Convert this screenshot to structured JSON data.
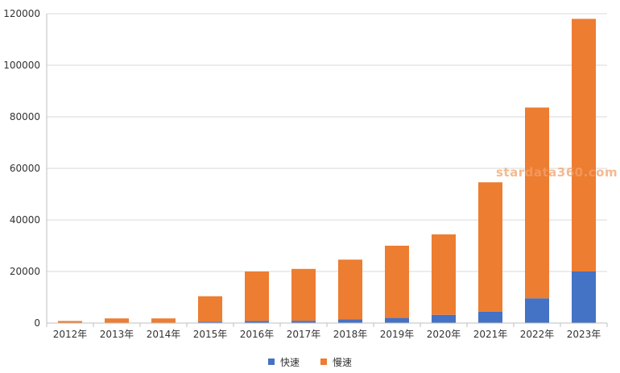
{
  "watermark": "stardata360.com",
  "colors": {
    "fast": "#4472c4",
    "slow": "#ed7d31",
    "watermark": "#f4a26a",
    "grid": "#d9d9d9",
    "axis": "#bfbfbf"
  },
  "chart_data": {
    "type": "bar",
    "stacked": true,
    "categories": [
      "2012年",
      "2013年",
      "2014年",
      "2015年",
      "2016年",
      "2017年",
      "2018年",
      "2019年",
      "2020年",
      "2021年",
      "2022年",
      "2023年"
    ],
    "series": [
      {
        "name": "快速",
        "color": "#4472c4",
        "values": [
          100,
          100,
          100,
          500,
          800,
          900,
          1500,
          2000,
          3200,
          4400,
          9600,
          20000
        ]
      },
      {
        "name": "慢速",
        "color": "#ed7d31",
        "values": [
          700,
          1700,
          1700,
          9900,
          19200,
          20100,
          23100,
          28000,
          31200,
          50200,
          74000,
          98000
        ]
      }
    ],
    "yticks": [
      "0",
      "20000",
      "40000",
      "60000",
      "80000",
      "100000",
      "120000"
    ],
    "ylim": [
      0,
      120000
    ],
    "grid": true,
    "legend": "bottom"
  }
}
